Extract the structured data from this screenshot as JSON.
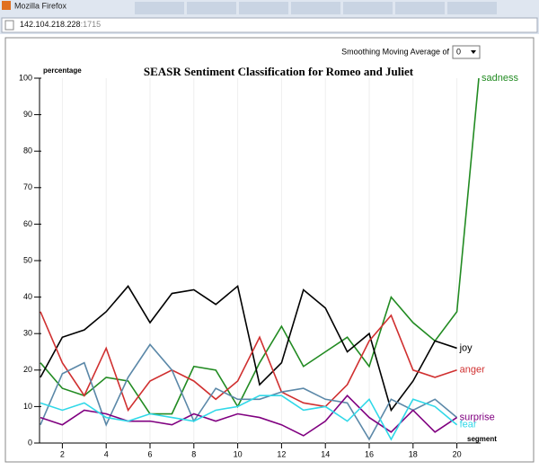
{
  "browser": {
    "window_title": "Mozilla Firefox",
    "url_host": "142.104.218.228",
    "url_port": ":1715"
  },
  "controls": {
    "smoothing_label": "Smoothing Moving Average of",
    "smoothing_value": "0"
  },
  "chart_data": {
    "type": "line",
    "title": "SEASR Sentiment Classification for Romeo and Juliet",
    "y_label": "percentage",
    "x_label": "segment",
    "x": [
      1,
      2,
      3,
      4,
      5,
      6,
      7,
      8,
      9,
      10,
      11,
      12,
      13,
      14,
      15,
      16,
      17,
      18,
      19,
      20,
      21
    ],
    "xlim": [
      1,
      21
    ],
    "xticks": [
      2,
      4,
      6,
      8,
      10,
      12,
      14,
      16,
      18,
      20
    ],
    "ylim": [
      0,
      100
    ],
    "yticks": [
      0,
      10,
      20,
      30,
      40,
      50,
      60,
      70,
      80,
      90,
      100
    ],
    "grid": true,
    "series": [
      {
        "name": "sadness",
        "color": "#228b22",
        "values": [
          22,
          15,
          13,
          18,
          17,
          8,
          8,
          21,
          20,
          10,
          22,
          32,
          21,
          25,
          29,
          21,
          40,
          33,
          28,
          36,
          100
        ]
      },
      {
        "name": "joy",
        "color": "#000000",
        "values": [
          18,
          29,
          31,
          36,
          43,
          33,
          41,
          42,
          38,
          43,
          16,
          22,
          42,
          37,
          25,
          30,
          9,
          17,
          28,
          26,
          null
        ]
      },
      {
        "name": "anger",
        "color": "#d03030",
        "values": [
          36,
          22,
          13,
          26,
          9,
          17,
          20,
          17,
          12,
          17,
          29,
          14,
          11,
          10,
          16,
          28,
          35,
          20,
          18,
          20,
          null
        ]
      },
      {
        "color": "#5b88a8",
        "values": [
          5,
          19,
          22,
          5,
          18,
          27,
          20,
          6,
          15,
          12,
          12,
          14,
          15,
          12,
          11,
          1,
          12,
          9,
          12,
          7,
          null
        ]
      },
      {
        "name": "surprise",
        "color": "#800080",
        "values": [
          7,
          5,
          9,
          8,
          6,
          6,
          5,
          8,
          6,
          8,
          7,
          5,
          2,
          6,
          13,
          7,
          3,
          9,
          3,
          7,
          null
        ]
      },
      {
        "name": "fear",
        "color": "#30d8e8",
        "values": [
          11,
          9,
          11,
          7,
          6,
          8,
          7,
          6,
          9,
          10,
          13,
          13,
          9,
          10,
          6,
          12,
          1,
          12,
          10,
          5,
          null
        ]
      }
    ]
  }
}
